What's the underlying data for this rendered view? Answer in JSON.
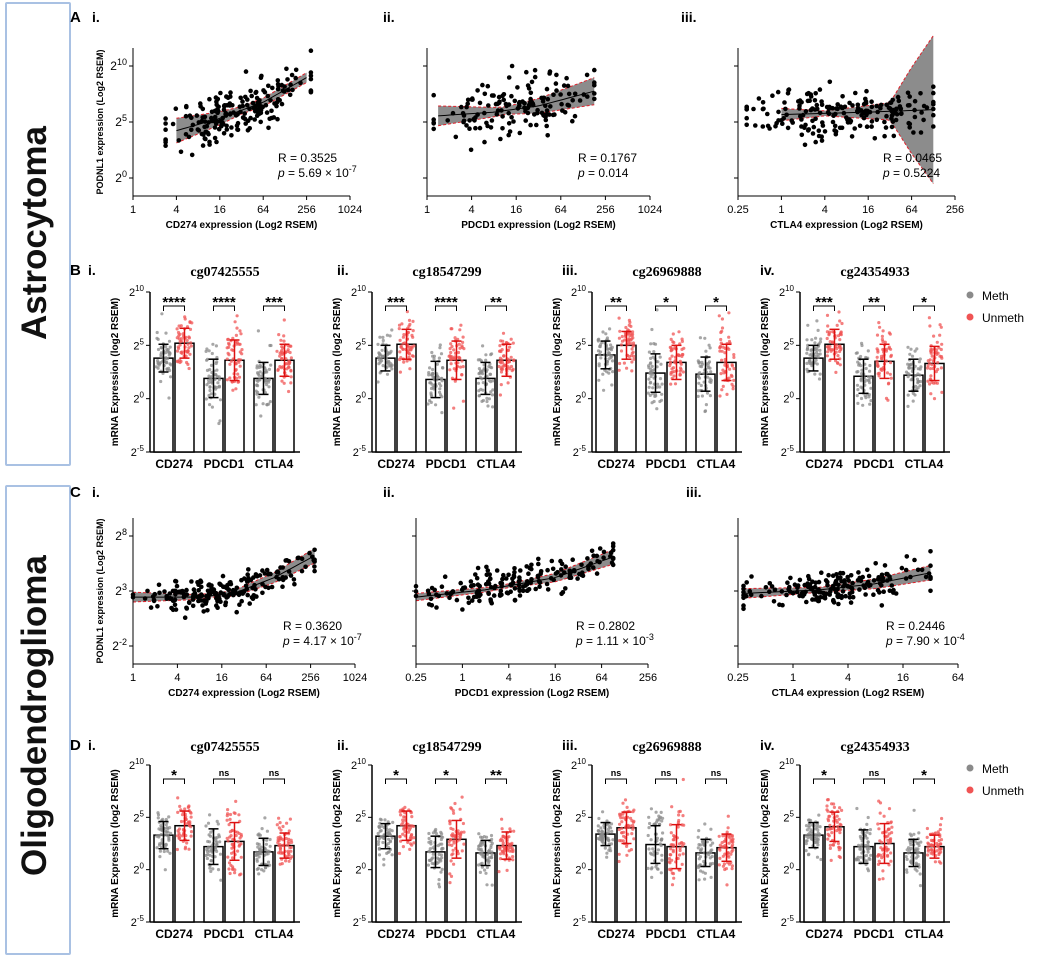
{
  "groups": {
    "astro": "Astrocytoma",
    "oligo": "Oligodendroglioma"
  },
  "rows": [
    "A",
    "B",
    "C",
    "D"
  ],
  "colors": {
    "meth": "#8a8a8a",
    "unmeth": "#f05454",
    "band": "#8c8c8c",
    "ci": "#e0202a",
    "dot": "#000000"
  },
  "legend": {
    "meth": "Meth",
    "unmeth": "Unmeth"
  },
  "chart_data": [
    {
      "id": "A-i",
      "type": "scatter",
      "panel": "i.",
      "xlabel": "CD274 expression (Log2 RSEM)",
      "ylabel": "PODNL1 expression (Log2 RSEM)",
      "xticks": [
        "1",
        "4",
        "16",
        "64",
        "256",
        "1024"
      ],
      "xlim_log2": [
        0,
        10
      ],
      "yticks": [
        "2^0",
        "2^5",
        "2^10"
      ],
      "ylim_log2": [
        -1,
        11
      ],
      "fit": [
        [
          2.0,
          4.3
        ],
        [
          4.0,
          5.3
        ],
        [
          6.0,
          6.6
        ],
        [
          8.0,
          8.6
        ]
      ],
      "ci": [
        [
          2.0,
          1.0
        ],
        [
          5.0,
          0.3
        ],
        [
          8.0,
          0.4
        ]
      ],
      "R": "R = 0.3525",
      "p": "p = 5.69 × 10",
      "p_exp": "-7",
      "seed": 11,
      "n": 200,
      "xrange": [
        1.5,
        8.2
      ],
      "noise": 2.2
    },
    {
      "id": "A-ii",
      "type": "scatter",
      "panel": "ii.",
      "xlabel": "PDCD1 expression (Log2 RSEM)",
      "ylabel": "",
      "xticks": [
        "1",
        "4",
        "16",
        "64",
        "256",
        "1024"
      ],
      "xlim_log2": [
        0,
        10
      ],
      "yticks": [],
      "ylim_log2": [
        -1,
        11
      ],
      "fit": [
        [
          0.5,
          5.5
        ],
        [
          3.0,
          5.8
        ],
        [
          5.0,
          6.3
        ],
        [
          7.5,
          7.5
        ]
      ],
      "ci": [
        [
          0.5,
          0.8
        ],
        [
          3.5,
          0.3
        ],
        [
          7.5,
          1.1
        ]
      ],
      "R": "R = 0.1767",
      "p": "p = 0.014",
      "p_exp": "",
      "seed": 23,
      "n": 150,
      "xrange": [
        0.3,
        7.5
      ],
      "noise": 2.3
    },
    {
      "id": "A-iii",
      "type": "scatter",
      "panel": "iii.",
      "xlabel": "CTLA4 expression (Log2 RSEM)",
      "ylabel": "",
      "xticks": [
        "0.25",
        "1",
        "4",
        "16",
        "64",
        "256"
      ],
      "xlim_log2": [
        -2,
        8
      ],
      "yticks": [],
      "ylim_log2": [
        -1,
        11
      ],
      "fit": [
        [
          0,
          5.6
        ],
        [
          2,
          5.7
        ],
        [
          4,
          5.8
        ],
        [
          7,
          6.0
        ]
      ],
      "ci": [
        [
          0,
          0.5
        ],
        [
          2,
          0.2
        ],
        [
          5,
          0.7
        ],
        [
          6,
          3.5
        ],
        [
          7,
          6.0
        ]
      ],
      "R": "R = 0.0465",
      "p": "p = 0.5224",
      "p_exp": "",
      "seed": 37,
      "n": 200,
      "xrange": [
        -1.6,
        7.0
      ],
      "noise": 2.1
    },
    {
      "id": "C-i",
      "type": "scatter",
      "panel": "i.",
      "xlabel": "CD274 expression (Log2 RSEM)",
      "ylabel": "PODNL1 expression (Log2 RSEM)",
      "xticks": [
        "1",
        "4",
        "16",
        "64",
        "256",
        "1024"
      ],
      "xlim_log2": [
        -1,
        10
      ],
      "yticks": [
        "2^-2",
        "2^3",
        "2^8"
      ],
      "ylim_log2": [
        -2.5,
        9.5
      ],
      "fit": [
        [
          -1,
          3.0
        ],
        [
          2,
          3.0
        ],
        [
          4,
          3.3
        ],
        [
          6,
          4.6
        ],
        [
          8,
          6.4
        ]
      ],
      "ci": [
        [
          -1,
          0.4
        ],
        [
          3,
          0.15
        ],
        [
          8,
          0.6
        ]
      ],
      "R": "R = 0.3620",
      "p": "p = 4.17 × 10",
      "p_exp": "-7",
      "seed": 51,
      "n": 200,
      "xrange": [
        -1,
        8
      ],
      "noise": 1.4
    },
    {
      "id": "C-ii",
      "type": "scatter",
      "panel": "ii.",
      "xlabel": "PDCD1 expression (Log2 RSEM)",
      "ylabel": "",
      "xticks": [
        "0.25",
        "1",
        "4",
        "16",
        "64",
        "256"
      ],
      "xlim_log2": [
        -2,
        8
      ],
      "yticks": [],
      "ylim_log2": [
        -2.5,
        9.5
      ],
      "fit": [
        [
          -2,
          3.0
        ],
        [
          1,
          3.6
        ],
        [
          4,
          4.6
        ],
        [
          6.5,
          6.3
        ]
      ],
      "ci": [
        [
          -2,
          0.3
        ],
        [
          2,
          0.15
        ],
        [
          6.5,
          0.6
        ]
      ],
      "R": "R = 0.2802",
      "p": "p = 1.11 × 10",
      "p_exp": "-3",
      "seed": 67,
      "n": 180,
      "xrange": [
        -2,
        6.5
      ],
      "noise": 1.4
    },
    {
      "id": "C-iii",
      "type": "scatter",
      "panel": "iii.",
      "xlabel": "CTLA4 expression (Log2 RSEM)",
      "ylabel": "",
      "xticks": [
        "0.25",
        "1",
        "4",
        "16",
        "64"
      ],
      "xlim_log2": [
        -2,
        6
      ],
      "yticks": [],
      "ylim_log2": [
        -2.5,
        9.5
      ],
      "fit": [
        [
          -1.8,
          3.3
        ],
        [
          1,
          3.6
        ],
        [
          3,
          4.1
        ],
        [
          5,
          5.0
        ]
      ],
      "ci": [
        [
          -1.8,
          0.4
        ],
        [
          1,
          0.2
        ],
        [
          5,
          0.6
        ]
      ],
      "R": "R = 0.2446",
      "p": "p = 7.90 × 10",
      "p_exp": "-4",
      "seed": 83,
      "n": 180,
      "xrange": [
        -1.8,
        5
      ],
      "noise": 1.4
    },
    {
      "id": "B-i",
      "type": "bar",
      "panel": "i.",
      "title": "cg07425555",
      "ylabel": "mRNA Expression (log2 RSEM)",
      "categories": [
        "CD274",
        "PDCD1",
        "CTLA4"
      ],
      "yticks": [
        "2^-5",
        "2^0",
        "2^5",
        "2^10"
      ],
      "ylim_log2": [
        -5,
        10
      ],
      "series": [
        {
          "name": "Meth",
          "values": [
            3.8,
            1.9,
            1.9
          ],
          "err": [
            1.3,
            1.8,
            1.5
          ]
        },
        {
          "name": "Unmeth",
          "values": [
            5.2,
            3.6,
            3.6
          ],
          "err": [
            1.4,
            1.9,
            1.5
          ]
        }
      ],
      "sig": [
        "****",
        "****",
        "***"
      ],
      "seed": 101
    },
    {
      "id": "B-ii",
      "type": "bar",
      "panel": "ii.",
      "title": "cg18547299",
      "ylabel": "mRNA Expression (log2 RSEM)",
      "categories": [
        "CD274",
        "PDCD1",
        "CTLA4"
      ],
      "yticks": [
        "2^-5",
        "2^0",
        "2^5",
        "2^10"
      ],
      "ylim_log2": [
        -5,
        10
      ],
      "series": [
        {
          "name": "Meth",
          "values": [
            3.8,
            1.8,
            1.9
          ],
          "err": [
            1.2,
            1.7,
            1.5
          ]
        },
        {
          "name": "Unmeth",
          "values": [
            5.1,
            3.6,
            3.6
          ],
          "err": [
            1.4,
            1.8,
            1.5
          ]
        }
      ],
      "sig": [
        "***",
        "****",
        "**"
      ],
      "seed": 131
    },
    {
      "id": "B-iii",
      "type": "bar",
      "panel": "iii.",
      "title": "cg26969888",
      "ylabel": "mRNA Expression (log2 RSEM)",
      "categories": [
        "CD274",
        "PDCD1",
        "CTLA4"
      ],
      "yticks": [
        "2^-5",
        "2^0",
        "2^5",
        "2^10"
      ],
      "ylim_log2": [
        -5,
        10
      ],
      "series": [
        {
          "name": "Meth",
          "values": [
            4.1,
            2.4,
            2.3
          ],
          "err": [
            1.3,
            1.8,
            1.6
          ]
        },
        {
          "name": "Unmeth",
          "values": [
            5.0,
            3.4,
            3.4
          ],
          "err": [
            1.3,
            1.6,
            1.7
          ]
        }
      ],
      "sig": [
        "**",
        "*",
        "*"
      ],
      "seed": 157
    },
    {
      "id": "B-iv",
      "type": "bar",
      "panel": "iv.",
      "title": "cg24354933",
      "ylabel": "mRNA Expression (log2 RSEM)",
      "categories": [
        "CD274",
        "PDCD1",
        "CTLA4"
      ],
      "yticks": [
        "2^-5",
        "2^0",
        "2^5",
        "2^10"
      ],
      "ylim_log2": [
        -5,
        10
      ],
      "series": [
        {
          "name": "Meth",
          "values": [
            3.8,
            2.1,
            2.2
          ],
          "err": [
            1.2,
            1.6,
            1.5
          ]
        },
        {
          "name": "Unmeth",
          "values": [
            5.1,
            3.5,
            3.3
          ],
          "err": [
            1.4,
            1.6,
            1.6
          ]
        }
      ],
      "sig": [
        "***",
        "**",
        "*"
      ],
      "seed": 181,
      "legend": true
    },
    {
      "id": "D-i",
      "type": "bar",
      "panel": "i.",
      "title": "cg07425555",
      "ylabel": "mRNA Expression (log2 RSEM)",
      "categories": [
        "CD274",
        "PDCD1",
        "CTLA4"
      ],
      "yticks": [
        "2^-5",
        "2^0",
        "2^5",
        "2^10"
      ],
      "ylim_log2": [
        -5,
        10
      ],
      "series": [
        {
          "name": "Meth",
          "values": [
            3.3,
            2.2,
            1.7
          ],
          "err": [
            1.3,
            1.7,
            1.3
          ]
        },
        {
          "name": "Unmeth",
          "values": [
            4.2,
            2.7,
            2.3
          ],
          "err": [
            1.4,
            1.8,
            1.2
          ]
        }
      ],
      "sig": [
        "*",
        "ns",
        "ns"
      ],
      "seed": 211
    },
    {
      "id": "D-ii",
      "type": "bar",
      "panel": "ii.",
      "title": "cg18547299",
      "ylabel": "mRNA Expression (log2 RSEM)",
      "categories": [
        "CD274",
        "PDCD1",
        "CTLA4"
      ],
      "yticks": [
        "2^-5",
        "2^0",
        "2^5",
        "2^10"
      ],
      "ylim_log2": [
        -5,
        10
      ],
      "series": [
        {
          "name": "Meth",
          "values": [
            3.2,
            1.7,
            1.6
          ],
          "err": [
            1.2,
            1.5,
            1.2
          ]
        },
        {
          "name": "Unmeth",
          "values": [
            4.2,
            2.9,
            2.3
          ],
          "err": [
            1.4,
            1.8,
            1.3
          ]
        }
      ],
      "sig": [
        "*",
        "*",
        "**"
      ],
      "seed": 239
    },
    {
      "id": "D-iii",
      "type": "bar",
      "panel": "iii.",
      "title": "cg26969888",
      "ylabel": "mRNA Expression (log2 RSEM)",
      "categories": [
        "CD274",
        "PDCD1",
        "CTLA4"
      ],
      "yticks": [
        "2^-5",
        "2^0",
        "2^5",
        "2^10"
      ],
      "ylim_log2": [
        -5,
        10
      ],
      "series": [
        {
          "name": "Meth",
          "values": [
            3.4,
            2.4,
            1.6
          ],
          "err": [
            1.1,
            1.8,
            1.3
          ]
        },
        {
          "name": "Unmeth",
          "values": [
            4.0,
            2.2,
            2.1
          ],
          "err": [
            1.5,
            2.1,
            1.3
          ]
        }
      ],
      "sig": [
        "ns",
        "ns",
        "ns"
      ],
      "seed": 263
    },
    {
      "id": "D-iv",
      "type": "bar",
      "panel": "iv.",
      "title": "cg24354933",
      "ylabel": "mRNA Expression (log2 RSEM)",
      "categories": [
        "CD274",
        "PDCD1",
        "CTLA4"
      ],
      "yticks": [
        "2^-5",
        "2^0",
        "2^5",
        "2^10"
      ],
      "ylim_log2": [
        -5,
        10
      ],
      "series": [
        {
          "name": "Meth",
          "values": [
            3.3,
            2.2,
            1.6
          ],
          "err": [
            1.2,
            1.6,
            1.3
          ]
        },
        {
          "name": "Unmeth",
          "values": [
            4.1,
            2.5,
            2.2
          ],
          "err": [
            1.4,
            1.9,
            1.1
          ]
        }
      ],
      "sig": [
        "*",
        "ns",
        "*"
      ],
      "seed": 293,
      "legend": true
    }
  ]
}
